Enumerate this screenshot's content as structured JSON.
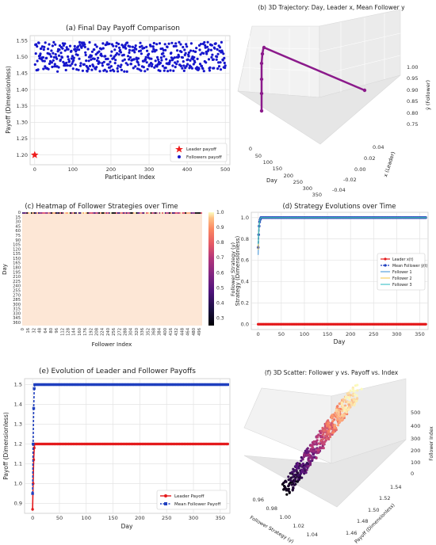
{
  "chart_data": [
    {
      "id": "a",
      "type": "scatter",
      "title": "(a) Final Day Payoff Comparison",
      "xlabel": "Participant Index",
      "ylabel": "Payoff (Dimensionless)",
      "xlim": [
        -12,
        512
      ],
      "ylim": [
        1.17,
        1.565
      ],
      "xticks": [
        0,
        100,
        200,
        300,
        400,
        500
      ],
      "yticks": [
        1.2,
        1.25,
        1.3,
        1.35,
        1.4,
        1.45,
        1.5,
        1.55
      ],
      "ytick_labels": [
        "1.20",
        "1.25",
        "1.30",
        "1.35",
        "1.40",
        "1.45",
        "1.50",
        "1.55"
      ],
      "grid": true,
      "legend": "lower-right",
      "series": [
        {
          "name": "Leader payoff",
          "color": "#ee1c1c",
          "marker": "star",
          "points": [
            [
              0,
              1.2
            ]
          ]
        },
        {
          "name": "Followers payoff",
          "color": "#1616cc",
          "marker": "circle",
          "n": 500,
          "x_range": [
            1,
            500
          ],
          "y_range": [
            1.455,
            1.545
          ]
        }
      ]
    },
    {
      "id": "b",
      "type": "line3d",
      "title": "(b) 3D Trajectory: Day, Leader x, Mean Follower y",
      "xlabel": "Day",
      "ylabel": "x (Leader)",
      "zlabel": "ȳ (Follower)",
      "xticks": [
        0,
        50,
        100,
        150,
        200,
        250,
        300,
        350
      ],
      "yticks": [
        "0.04",
        "0.02",
        "0.00",
        "-0.02",
        "-0.04"
      ],
      "zticks": [
        "1.00",
        "0.95",
        "0.90",
        "0.85",
        "0.80",
        "0.75"
      ],
      "color": "#8b1a8b",
      "points": [
        [
          0,
          0.0,
          0.74
        ],
        [
          1,
          0.0,
          0.83
        ],
        [
          2,
          0.0,
          0.91
        ],
        [
          3,
          0.0,
          0.96
        ],
        [
          4,
          0.0,
          0.98
        ],
        [
          5,
          0.0,
          0.99
        ],
        [
          6,
          0.0,
          1.0
        ],
        [
          365,
          0.0,
          1.0
        ]
      ]
    },
    {
      "id": "c",
      "type": "heatmap",
      "title": "(c) Heatmap of Follower Strategies over Time",
      "xlabel": "Follower Index",
      "ylabel": "Day",
      "colorbar_label": "Follower Strategy (y)",
      "colorbar_ticks": [
        "1.0",
        "0.9",
        "0.8",
        "0.7",
        "0.6",
        "0.5",
        "0.4",
        "0.3"
      ],
      "color_range": [
        0.25,
        1.0
      ],
      "xticks": [
        "0",
        "16",
        "32",
        "48",
        "64",
        "80",
        "96",
        "112",
        "128",
        "144",
        "160",
        "176",
        "192",
        "208",
        "224",
        "240",
        "256",
        "272",
        "288",
        "304",
        "320",
        "336",
        "352",
        "368",
        "384",
        "400",
        "416",
        "432",
        "448",
        "464",
        "480",
        "496"
      ],
      "yticks": [
        "0",
        "15",
        "30",
        "45",
        "60",
        "75",
        "90",
        "105",
        "120",
        "135",
        "150",
        "165",
        "180",
        "195",
        "210",
        "225",
        "240",
        "255",
        "270",
        "285",
        "300",
        "315",
        "330",
        "345",
        "360"
      ],
      "value_summary": "day 0 varies 0.25-1.0; all later days = 1.0"
    },
    {
      "id": "d",
      "type": "line",
      "title": "(d) Strategy Evolutions over Time",
      "xlabel": "Day",
      "ylabel": "Strategy (Dimensionless)",
      "xlim": [
        -15,
        368
      ],
      "ylim": [
        -0.05,
        1.05
      ],
      "xticks": [
        0,
        50,
        100,
        150,
        200,
        250,
        300,
        350
      ],
      "yticks": [
        0.0,
        0.2,
        0.4,
        0.6,
        0.8,
        1.0
      ],
      "ytick_labels": [
        "0.0",
        "0.2",
        "0.4",
        "0.6",
        "0.8",
        "1.0"
      ],
      "grid": true,
      "legend": "center-right",
      "series": [
        {
          "name": "Leader x(t)",
          "color": "#e41a1c",
          "marker": "circle",
          "points": [
            [
              0,
              0.0
            ],
            [
              365,
              0.0
            ]
          ]
        },
        {
          "name": "Mean Follower ȳ(t)",
          "color": "#1f3fbf",
          "marker": "circle",
          "dashed": true,
          "points": [
            [
              0,
              0.72
            ],
            [
              1,
              0.84
            ],
            [
              2,
              0.92
            ],
            [
              3,
              0.96
            ],
            [
              4,
              0.98
            ],
            [
              5,
              0.99
            ],
            [
              6,
              1.0
            ],
            [
              365,
              1.0
            ]
          ]
        },
        {
          "name": "Follower 1",
          "color": "#3a8fd6",
          "points": [
            [
              0,
              0.65
            ],
            [
              1,
              0.82
            ],
            [
              2,
              0.91
            ],
            [
              4,
              0.98
            ],
            [
              6,
              1.0
            ],
            [
              365,
              1.0
            ]
          ]
        },
        {
          "name": "Follower 2",
          "color": "#f4c542",
          "points": [
            [
              0,
              0.7
            ],
            [
              1,
              0.85
            ],
            [
              2,
              0.93
            ],
            [
              4,
              0.99
            ],
            [
              6,
              1.0
            ],
            [
              365,
              1.0
            ]
          ]
        },
        {
          "name": "Follower 3",
          "color": "#26b8c2",
          "points": [
            [
              0,
              0.75
            ],
            [
              1,
              0.87
            ],
            [
              2,
              0.94
            ],
            [
              4,
              0.99
            ],
            [
              6,
              1.0
            ],
            [
              365,
              1.0
            ]
          ]
        }
      ]
    },
    {
      "id": "e",
      "type": "line",
      "title": "(e) Evolution of Leader and Follower Payoffs",
      "xlabel": "Day",
      "ylabel": "Payoff (Dimensionless)",
      "xlim": [
        -15,
        368
      ],
      "ylim": [
        0.85,
        1.53
      ],
      "xticks": [
        0,
        50,
        100,
        150,
        200,
        250,
        300,
        350
      ],
      "yticks": [
        0.9,
        1.0,
        1.1,
        1.2,
        1.3,
        1.4,
        1.5
      ],
      "ytick_labels": [
        "0.9",
        "1.0",
        "1.1",
        "1.2",
        "1.3",
        "1.4",
        "1.5"
      ],
      "grid": true,
      "legend": "lower-right",
      "series": [
        {
          "name": "Leader Payoff",
          "color": "#e41a1c",
          "marker": "circle",
          "points": [
            [
              0,
              0.87
            ],
            [
              1,
              1.0
            ],
            [
              2,
              1.12
            ],
            [
              3,
              1.18
            ],
            [
              4,
              1.2
            ],
            [
              365,
              1.2
            ]
          ]
        },
        {
          "name": "Mean Follower Payoff",
          "color": "#1f3fbf",
          "marker": "square",
          "dashed": true,
          "points": [
            [
              0,
              0.95
            ],
            [
              1,
              1.2
            ],
            [
              2,
              1.38
            ],
            [
              3,
              1.48
            ],
            [
              4,
              1.5
            ],
            [
              365,
              1.5
            ]
          ]
        }
      ]
    },
    {
      "id": "f",
      "type": "scatter3d",
      "title": "(f) 3D Scatter: Follower y vs. Payoff vs. Index",
      "xlabel": "Follower Strategy (y)",
      "ylabel": "Payoff (Dimensionless)",
      "zlabel": "Follower Index",
      "xticks": [
        "0.96",
        "0.98",
        "1.00",
        "1.02",
        "1.04"
      ],
      "yticks": [
        "1.46",
        "1.48",
        "1.50",
        "1.52",
        "1.54"
      ],
      "zticks": [
        "0",
        "100",
        "200",
        "300",
        "400",
        "500"
      ],
      "n": 500,
      "colormap": "magma"
    }
  ]
}
